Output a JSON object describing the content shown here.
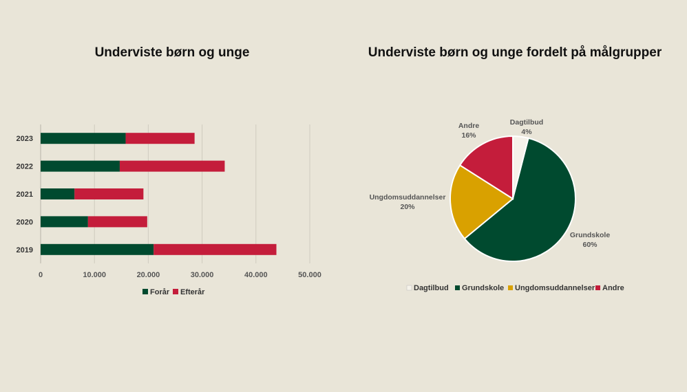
{
  "chart_data": [
    {
      "type": "bar",
      "orientation": "horizontal",
      "stacked": true,
      "title": "Underviste børn og unge",
      "categories": [
        "2023",
        "2022",
        "2021",
        "2020",
        "2019"
      ],
      "series": [
        {
          "name": "Forår",
          "color": "#004a2f",
          "values": [
            15800,
            14700,
            6300,
            8800,
            21000
          ]
        },
        {
          "name": "Efterår",
          "color": "#c41d3b",
          "values": [
            12800,
            19500,
            12800,
            11000,
            22800
          ]
        }
      ],
      "xlim": [
        0,
        50000
      ],
      "xticks": [
        "0",
        "10.000",
        "20.000",
        "30.000",
        "40.000",
        "50.000"
      ],
      "grid": true,
      "legend": "bottom"
    },
    {
      "type": "pie",
      "title": "Underviste børn og unge fordelt på målgrupper",
      "categories": [
        "Dagtilbud",
        "Grundskole",
        "Ungdomsuddannelser",
        "Andre"
      ],
      "values": [
        4,
        60,
        20,
        16
      ],
      "labels": [
        "4%",
        "60%",
        "20%",
        "16%"
      ],
      "colors": [
        "#f5f2ea",
        "#004a2f",
        "#d9a100",
        "#c41d3b"
      ],
      "legend": "bottom"
    }
  ]
}
